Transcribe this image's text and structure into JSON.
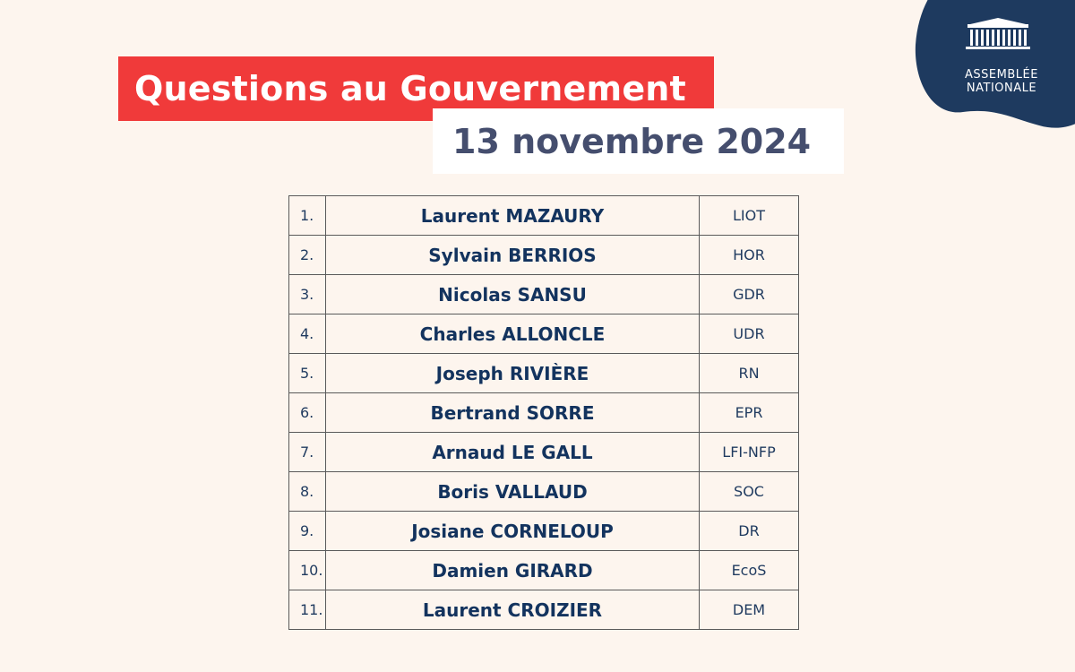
{
  "header": {
    "title": "Questions au Gouvernement",
    "date": "13 novembre 2024"
  },
  "logo": {
    "line1": "ASSEMBLÉE",
    "line2": "NATIONALE",
    "icon": "parliament-building-icon",
    "color": "#1e3a5f"
  },
  "colors": {
    "background": "#fdf5ee",
    "title_bg": "#f03a3a",
    "date_text": "#454e6e",
    "name_text": "#13335e"
  },
  "questions": [
    {
      "num": "1.",
      "name": "Laurent MAZAURY",
      "group": "LIOT"
    },
    {
      "num": "2.",
      "name": "Sylvain BERRIOS",
      "group": "HOR"
    },
    {
      "num": "3.",
      "name": "Nicolas SANSU",
      "group": "GDR"
    },
    {
      "num": "4.",
      "name": "Charles ALLONCLE",
      "group": "UDR"
    },
    {
      "num": "5.",
      "name": "Joseph RIVIÈRE",
      "group": "RN"
    },
    {
      "num": "6.",
      "name": "Bertrand SORRE",
      "group": "EPR"
    },
    {
      "num": "7.",
      "name": "Arnaud LE GALL",
      "group": "LFI-NFP"
    },
    {
      "num": "8.",
      "name": "Boris VALLAUD",
      "group": "SOC"
    },
    {
      "num": "9.",
      "name": "Josiane CORNELOUP",
      "group": "DR"
    },
    {
      "num": "10.",
      "name": "Damien GIRARD",
      "group": "EcoS"
    },
    {
      "num": "11.",
      "name": "Laurent CROIZIER",
      "group": "DEM"
    }
  ]
}
